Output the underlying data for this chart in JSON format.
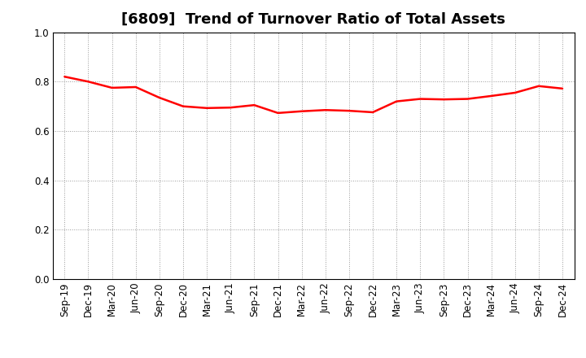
{
  "title": "[6809]  Trend of Turnover Ratio of Total Assets",
  "x_labels": [
    "Sep-19",
    "Dec-19",
    "Mar-20",
    "Jun-20",
    "Sep-20",
    "Dec-20",
    "Mar-21",
    "Jun-21",
    "Sep-21",
    "Dec-21",
    "Mar-22",
    "Jun-22",
    "Sep-22",
    "Dec-22",
    "Mar-23",
    "Jun-23",
    "Sep-23",
    "Dec-23",
    "Mar-24",
    "Jun-24",
    "Sep-24",
    "Dec-24"
  ],
  "y_values": [
    0.82,
    0.8,
    0.775,
    0.778,
    0.735,
    0.7,
    0.693,
    0.695,
    0.705,
    0.673,
    0.68,
    0.685,
    0.682,
    0.676,
    0.72,
    0.73,
    0.728,
    0.73,
    0.742,
    0.755,
    0.782,
    0.772
  ],
  "line_color": "#FF0000",
  "line_width": 1.8,
  "ylim": [
    0.0,
    1.0
  ],
  "yticks": [
    0.0,
    0.2,
    0.4,
    0.6,
    0.8,
    1.0
  ],
  "grid_color": "#999999",
  "background_color": "#ffffff",
  "title_fontsize": 13,
  "tick_fontsize": 8.5
}
